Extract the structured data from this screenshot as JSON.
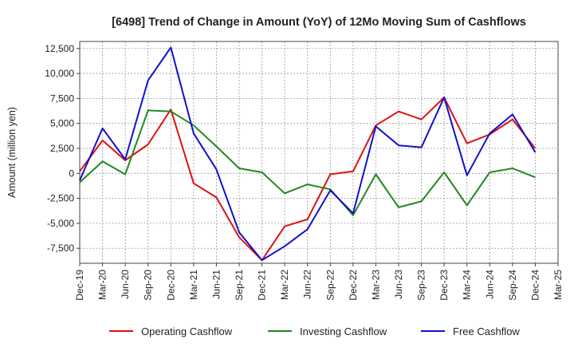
{
  "chart_data": {
    "type": "line",
    "title": "[6498]  Trend of Change in Amount (YoY) of 12Mo Moving Sum of Cashflows",
    "xlabel": "",
    "ylabel": "Amount (million yen)",
    "ylim": [
      -9000,
      13200
    ],
    "yticks": [
      -7500,
      -5000,
      -2500,
      0,
      2500,
      5000,
      7500,
      10000,
      12500
    ],
    "ytick_labels": [
      "-7,500",
      "-5,000",
      "-2,500",
      "0",
      "2,500",
      "5,000",
      "7,500",
      "10,000",
      "12,500"
    ],
    "categories": [
      "Dec-19",
      "Mar-20",
      "Jun-20",
      "Sep-20",
      "Dec-20",
      "Mar-21",
      "Jun-21",
      "Sep-21",
      "Dec-21",
      "Mar-22",
      "Jun-22",
      "Sep-22",
      "Dec-22",
      "Mar-23",
      "Jun-23",
      "Sep-23",
      "Dec-23",
      "Mar-24",
      "Jun-24",
      "Sep-24",
      "Dec-24",
      "Mar-25"
    ],
    "grid": true,
    "legend_position": "bottom",
    "series": [
      {
        "name": "Operating Cashflow",
        "color": "#dd1111",
        "values": [
          200,
          3300,
          1300,
          2900,
          6400,
          -1000,
          -2400,
          -6400,
          -8700,
          -5300,
          -4600,
          -100,
          200,
          4800,
          6200,
          5400,
          7600,
          3000,
          3900,
          5400,
          2500,
          null
        ]
      },
      {
        "name": "Investing Cashflow",
        "color": "#228822",
        "values": [
          -900,
          1200,
          -100,
          6300,
          6200,
          4800,
          2700,
          500,
          100,
          -2000,
          -1100,
          -1600,
          -4200,
          -100,
          -3400,
          -2800,
          100,
          -3200,
          100,
          500,
          -400,
          null
        ]
      },
      {
        "name": "Free Cashflow",
        "color": "#1111cc",
        "values": [
          -700,
          4500,
          1400,
          9300,
          12600,
          4000,
          400,
          -5900,
          -8700,
          -7300,
          -5600,
          -1700,
          -4000,
          4700,
          2800,
          2600,
          7600,
          -200,
          4000,
          5900,
          2100,
          null
        ]
      }
    ]
  }
}
